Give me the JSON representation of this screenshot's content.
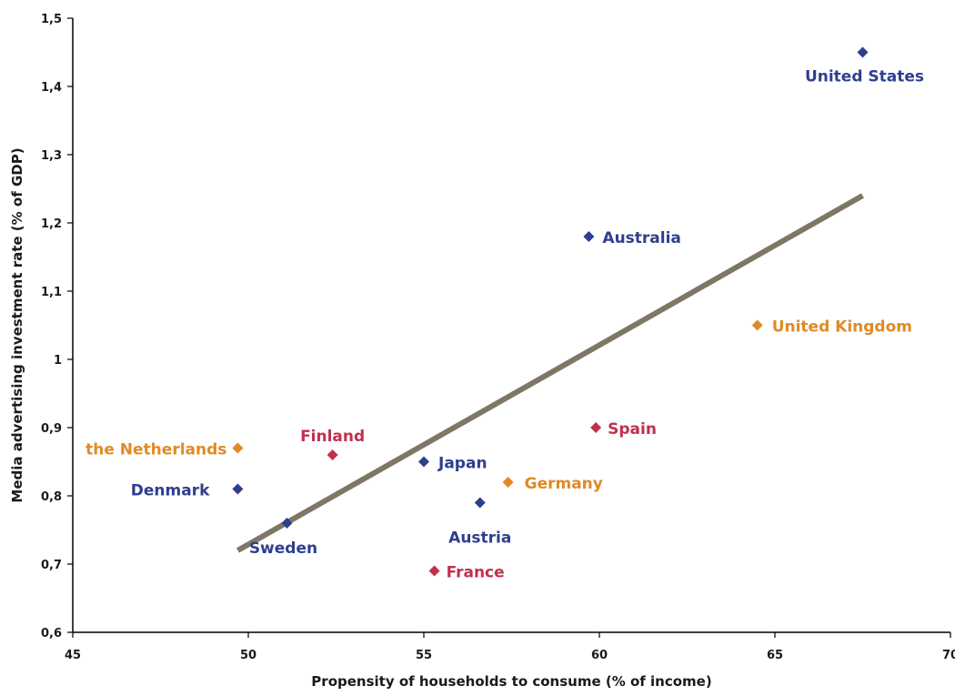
{
  "chart_data": {
    "type": "scatter",
    "title": "",
    "xlabel": "Propensity of households to consume (% of income)",
    "ylabel": "Media advertising investment rate (% of GDP)",
    "xlim": [
      45,
      70
    ],
    "ylim": [
      0.6,
      1.5
    ],
    "x_ticks": [
      "45",
      "50",
      "55",
      "60",
      "65",
      "70"
    ],
    "y_ticks": [
      "0,6",
      "0,7",
      "0,8",
      "0,9",
      "1",
      "1,1",
      "1,2",
      "1,3",
      "1,4",
      "1,5"
    ],
    "grid": false,
    "legend": "none",
    "colors": {
      "blue": "#2e3f8f",
      "red": "#c0304e",
      "orange": "#e08a26",
      "trend": "#7f7766"
    },
    "points": [
      {
        "label": "United States",
        "x": 67.5,
        "y": 1.45,
        "color": "blue"
      },
      {
        "label": "Australia",
        "x": 59.7,
        "y": 1.18,
        "color": "blue"
      },
      {
        "label": "United Kingdom",
        "x": 64.5,
        "y": 1.05,
        "color": "orange"
      },
      {
        "label": "Spain",
        "x": 59.9,
        "y": 0.9,
        "color": "red"
      },
      {
        "label": "the Netherlands",
        "x": 49.7,
        "y": 0.87,
        "color": "orange"
      },
      {
        "label": "Finland",
        "x": 52.4,
        "y": 0.86,
        "color": "red"
      },
      {
        "label": "Japan",
        "x": 55.0,
        "y": 0.85,
        "color": "blue"
      },
      {
        "label": "Germany",
        "x": 57.4,
        "y": 0.82,
        "color": "orange"
      },
      {
        "label": "Denmark",
        "x": 49.7,
        "y": 0.81,
        "color": "blue"
      },
      {
        "label": "Austria",
        "x": 56.6,
        "y": 0.79,
        "color": "blue"
      },
      {
        "label": "Sweden",
        "x": 51.1,
        "y": 0.76,
        "color": "blue"
      },
      {
        "label": "France",
        "x": 55.3,
        "y": 0.69,
        "color": "red"
      }
    ],
    "trendline": {
      "x": [
        49.7,
        67.5
      ],
      "y": [
        0.72,
        1.24
      ]
    }
  }
}
